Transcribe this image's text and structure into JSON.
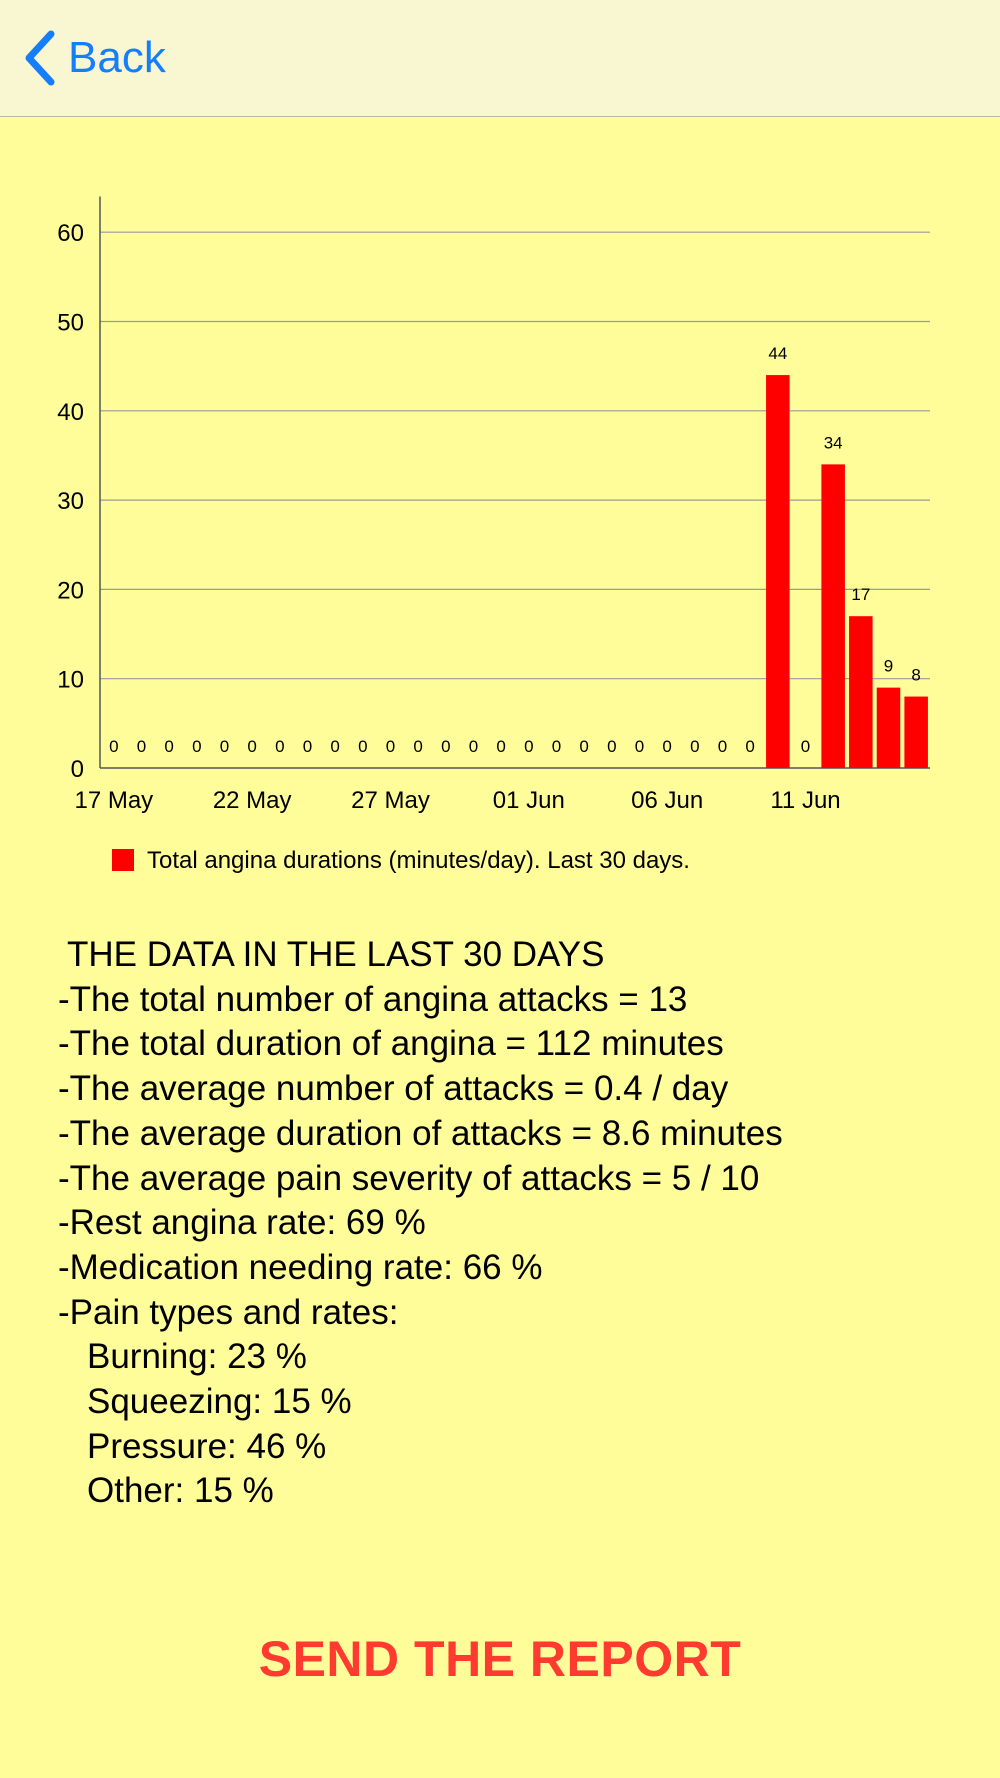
{
  "nav": {
    "back_label": "Back",
    "back_icon": "chevron-left-icon",
    "accent_color": "#157EFB"
  },
  "chart_data": {
    "type": "bar",
    "x": [
      "17 May",
      "18 May",
      "19 May",
      "20 May",
      "21 May",
      "22 May",
      "23 May",
      "24 May",
      "25 May",
      "26 May",
      "27 May",
      "28 May",
      "29 May",
      "30 May",
      "31 May",
      "01 Jun",
      "02 Jun",
      "03 Jun",
      "04 Jun",
      "05 Jun",
      "06 Jun",
      "07 Jun",
      "08 Jun",
      "09 Jun",
      "10 Jun",
      "11 Jun",
      "12 Jun",
      "13 Jun",
      "14 Jun",
      "15 Jun"
    ],
    "values": [
      0,
      0,
      0,
      0,
      0,
      0,
      0,
      0,
      0,
      0,
      0,
      0,
      0,
      0,
      0,
      0,
      0,
      0,
      0,
      0,
      0,
      0,
      0,
      0,
      44,
      0,
      34,
      17,
      9,
      8
    ],
    "x_tick_labels": [
      "17 May",
      "22 May",
      "27 May",
      "01 Jun",
      "06 Jun",
      "11 Jun"
    ],
    "y_ticks": [
      0,
      10,
      20,
      30,
      40,
      50,
      60
    ],
    "ylim": [
      0,
      64
    ],
    "grid": true,
    "bar_color": "#FF0000",
    "series": [
      {
        "name": "Total angina durations (minutes/day). Last 30 days.",
        "color": "#FF0000"
      }
    ],
    "legend_position": "bottom-left"
  },
  "summary": {
    "heading": "THE DATA IN THE LAST 30 DAYS",
    "lines": [
      "-The total number of angina attacks = 13",
      "-The total duration of angina = 112 minutes",
      "-The average number of attacks = 0.4 / day",
      "-The average duration of attacks = 8.6 minutes",
      "-The average pain severity of attacks = 5 / 10",
      "-Rest angina rate: 69 %",
      "-Medication needing rate: 66 %",
      "-Pain types and rates:"
    ],
    "pain_types": [
      "Burning: 23 %",
      "Squeezing: 15 %",
      "Pressure: 46 %",
      "Other: 15 %"
    ]
  },
  "action": {
    "send_label": "SEND THE REPORT",
    "color": "#FF3B30"
  }
}
